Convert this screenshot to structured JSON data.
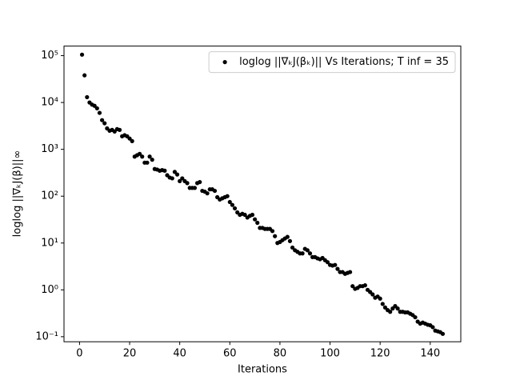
{
  "chart_data": {
    "type": "scatter",
    "xlabel": "Iterations",
    "ylabel": "loglog ||∇ₖJ(β)||∞",
    "log_y": true,
    "legend_position": "upper right",
    "xlim": [
      -6.2,
      152.2
    ],
    "ylim": [
      0.078,
      160000
    ],
    "xticks": [
      0,
      20,
      40,
      60,
      80,
      100,
      120,
      140
    ],
    "yticks": [
      {
        "value": 0.1,
        "label": "10⁻¹"
      },
      {
        "value": 1,
        "label": "10⁰"
      },
      {
        "value": 10,
        "label": "10¹"
      },
      {
        "value": 100,
        "label": "10²"
      },
      {
        "value": 1000,
        "label": "10³"
      },
      {
        "value": 10000,
        "label": "10⁴"
      },
      {
        "value": 100000,
        "label": "10⁵"
      }
    ],
    "series": [
      {
        "name": "loglog ||∇ₖJ(βₖ)|| Vs Iterations; T inf = 35",
        "color": "#000000",
        "x": [
          1,
          2,
          3,
          4,
          5,
          6,
          7,
          8,
          9,
          10,
          11,
          12,
          13,
          14,
          15,
          16,
          17,
          18,
          19,
          20,
          21,
          22,
          23,
          24,
          25,
          26,
          27,
          28,
          29,
          30,
          31,
          32,
          33,
          34,
          35,
          36,
          37,
          38,
          39,
          40,
          41,
          42,
          43,
          44,
          45,
          46,
          47,
          48,
          49,
          50,
          51,
          52,
          53,
          54,
          55,
          56,
          57,
          58,
          59,
          60,
          61,
          62,
          63,
          64,
          65,
          66,
          67,
          68,
          69,
          70,
          71,
          72,
          73,
          74,
          75,
          76,
          77,
          78,
          79,
          80,
          81,
          82,
          83,
          84,
          85,
          86,
          87,
          88,
          89,
          90,
          91,
          92,
          93,
          94,
          95,
          96,
          97,
          98,
          99,
          100,
          101,
          102,
          103,
          104,
          105,
          106,
          107,
          108,
          109,
          110,
          111,
          112,
          113,
          114,
          115,
          116,
          117,
          118,
          119,
          120,
          121,
          122,
          123,
          124,
          125,
          126,
          127,
          128,
          129,
          130,
          131,
          132,
          133,
          134,
          135,
          136,
          137,
          138,
          139,
          140,
          141,
          142,
          143,
          144,
          145
        ],
        "values": [
          105000,
          38000,
          13000,
          10000,
          9000,
          8500,
          7500,
          6000,
          4200,
          3600,
          2800,
          2500,
          2600,
          2400,
          2700,
          2600,
          1900,
          2000,
          1900,
          1700,
          1500,
          700,
          750,
          800,
          700,
          520,
          520,
          700,
          600,
          380,
          370,
          350,
          360,
          350,
          280,
          250,
          240,
          330,
          290,
          210,
          240,
          210,
          190,
          150,
          150,
          150,
          190,
          200,
          130,
          125,
          115,
          140,
          140,
          130,
          95,
          85,
          90,
          95,
          100,
          75,
          65,
          55,
          45,
          40,
          42,
          40,
          35,
          38,
          40,
          32,
          27,
          21,
          21,
          20,
          20,
          20,
          18,
          14,
          10,
          10.5,
          11.5,
          12.5,
          13.5,
          11,
          8,
          7,
          6.5,
          6,
          6,
          7.5,
          7,
          6,
          5,
          5,
          4.7,
          4.5,
          4.8,
          4.3,
          3.9,
          3.4,
          3.3,
          3.4,
          2.8,
          2.4,
          2.4,
          2.2,
          2.3,
          2.4,
          1.2,
          1.05,
          1.1,
          1.2,
          1.2,
          1.25,
          1.0,
          0.9,
          0.8,
          0.68,
          0.72,
          0.65,
          0.5,
          0.42,
          0.37,
          0.34,
          0.4,
          0.45,
          0.4,
          0.34,
          0.34,
          0.33,
          0.33,
          0.31,
          0.29,
          0.26,
          0.21,
          0.19,
          0.2,
          0.19,
          0.18,
          0.175,
          0.16,
          0.135,
          0.13,
          0.125,
          0.115
        ]
      }
    ]
  }
}
